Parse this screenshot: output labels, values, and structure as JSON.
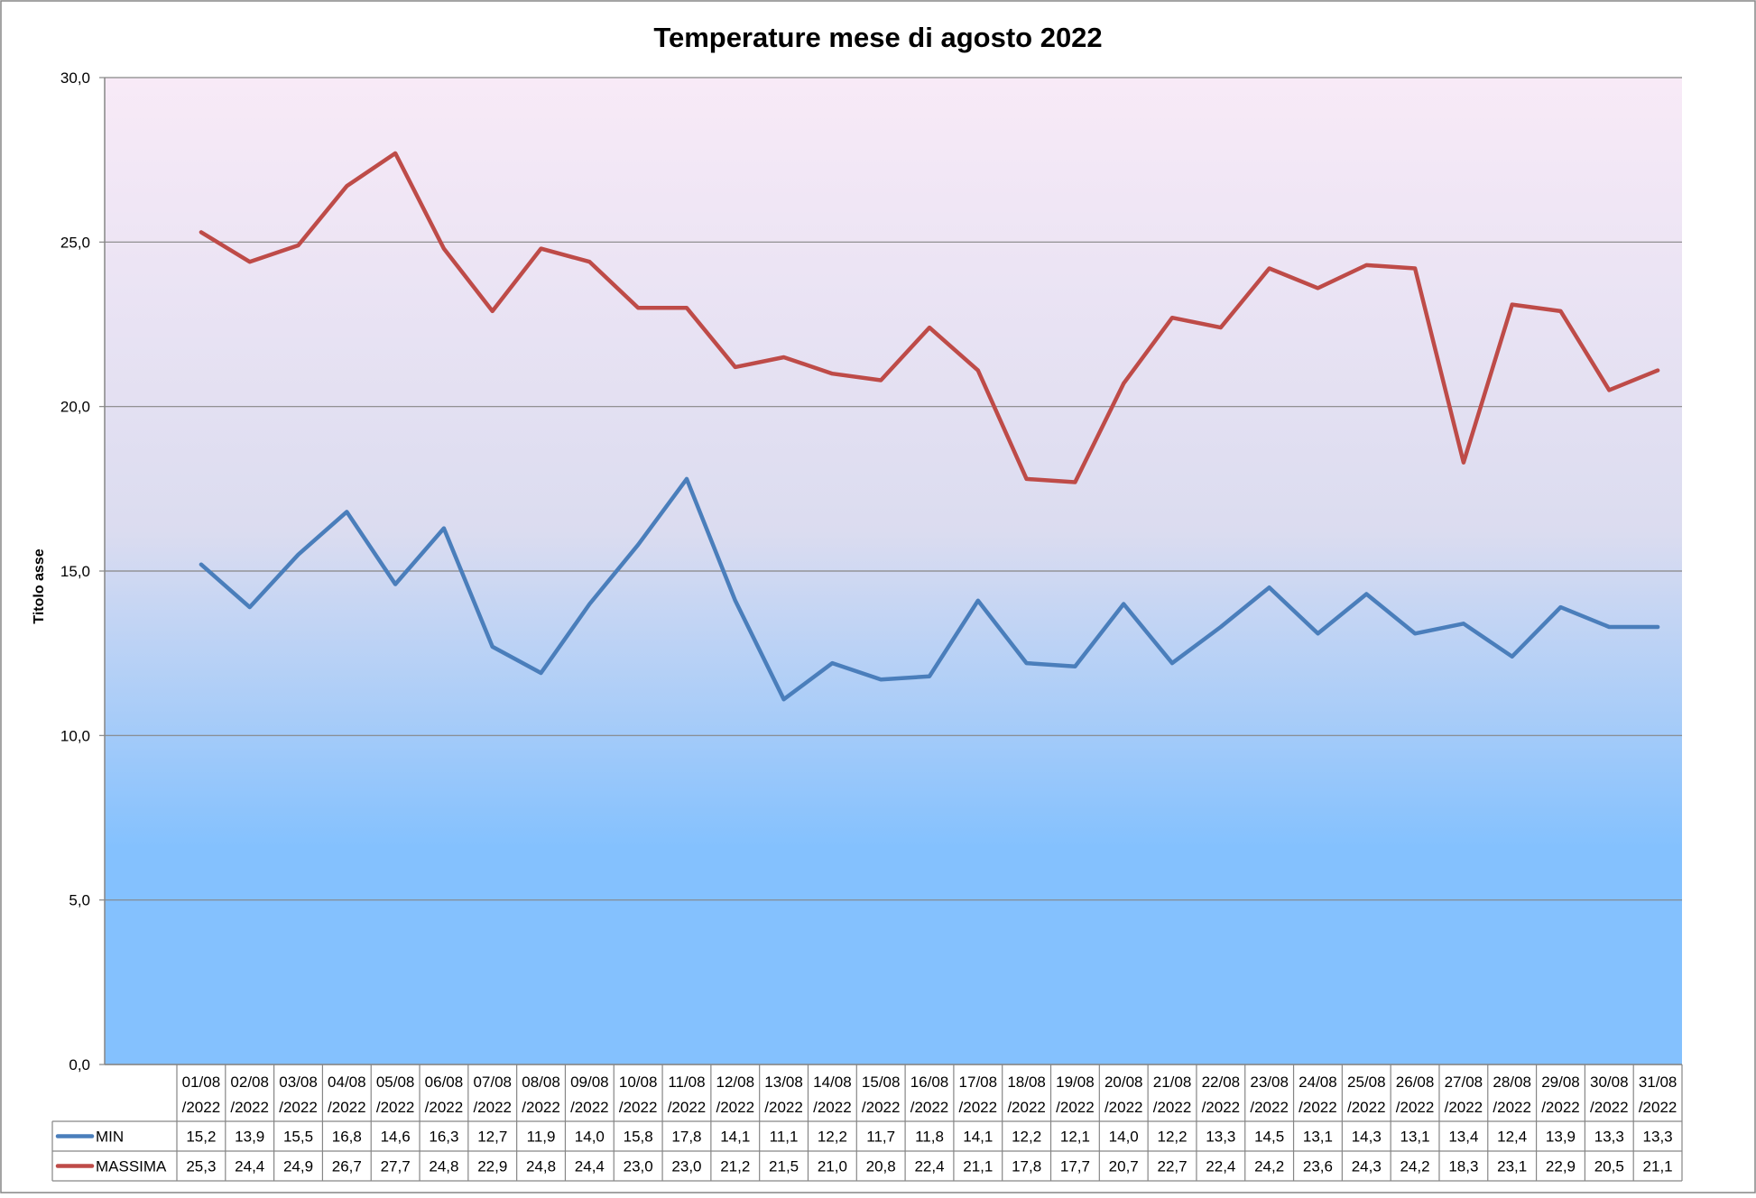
{
  "chart_data": {
    "type": "line",
    "title": "Temperature mese di agosto 2022",
    "ylabel": "Titolo asse",
    "xlabel": "",
    "ylim": [
      0,
      30
    ],
    "yticks": [
      "0,0",
      "5,0",
      "10,0",
      "15,0",
      "20,0",
      "25,0",
      "30,0"
    ],
    "grid": true,
    "legend_placement": "data-table",
    "categories": [
      [
        "01/08",
        "/2022"
      ],
      [
        "02/08",
        "/2022"
      ],
      [
        "03/08",
        "/2022"
      ],
      [
        "04/08",
        "/2022"
      ],
      [
        "05/08",
        "/2022"
      ],
      [
        "06/08",
        "/2022"
      ],
      [
        "07/08",
        "/2022"
      ],
      [
        "08/08",
        "/2022"
      ],
      [
        "09/08",
        "/2022"
      ],
      [
        "10/08",
        "/2022"
      ],
      [
        "11/08",
        "/2022"
      ],
      [
        "12/08",
        "/2022"
      ],
      [
        "13/08",
        "/2022"
      ],
      [
        "14/08",
        "/2022"
      ],
      [
        "15/08",
        "/2022"
      ],
      [
        "16/08",
        "/2022"
      ],
      [
        "17/08",
        "/2022"
      ],
      [
        "18/08",
        "/2022"
      ],
      [
        "19/08",
        "/2022"
      ],
      [
        "20/08",
        "/2022"
      ],
      [
        "21/08",
        "/2022"
      ],
      [
        "22/08",
        "/2022"
      ],
      [
        "23/08",
        "/2022"
      ],
      [
        "24/08",
        "/2022"
      ],
      [
        "25/08",
        "/2022"
      ],
      [
        "26/08",
        "/2022"
      ],
      [
        "27/08",
        "/2022"
      ],
      [
        "28/08",
        "/2022"
      ],
      [
        "29/08",
        "/2022"
      ],
      [
        "30/08",
        "/2022"
      ],
      [
        "31/08",
        "/2022"
      ]
    ],
    "series": [
      {
        "name": "MIN",
        "color": "#4a7ebb",
        "values": [
          15.2,
          13.9,
          15.5,
          16.8,
          14.6,
          16.3,
          12.7,
          11.9,
          14.0,
          15.8,
          17.8,
          14.1,
          11.1,
          12.2,
          11.7,
          11.8,
          14.1,
          12.2,
          12.1,
          14.0,
          12.2,
          13.3,
          14.5,
          13.1,
          14.3,
          13.1,
          13.4,
          12.4,
          13.9,
          13.3,
          13.3
        ],
        "labels": [
          "15,2",
          "13,9",
          "15,5",
          "16,8",
          "14,6",
          "16,3",
          "12,7",
          "11,9",
          "14,0",
          "15,8",
          "17,8",
          "14,1",
          "11,1",
          "12,2",
          "11,7",
          "11,8",
          "14,1",
          "12,2",
          "12,1",
          "14,0",
          "12,2",
          "13,3",
          "14,5",
          "13,1",
          "14,3",
          "13,1",
          "13,4",
          "12,4",
          "13,9",
          "13,3",
          "13,3"
        ]
      },
      {
        "name": "MASSIMA",
        "color": "#be4b48",
        "values": [
          25.3,
          24.4,
          24.9,
          26.7,
          27.7,
          24.8,
          22.9,
          24.8,
          24.4,
          23.0,
          23.0,
          21.2,
          21.5,
          21.0,
          20.8,
          22.4,
          21.1,
          17.8,
          17.7,
          20.7,
          22.7,
          22.4,
          24.2,
          23.6,
          24.3,
          24.2,
          18.3,
          23.1,
          22.9,
          20.5,
          21.1
        ],
        "labels": [
          "25,3",
          "24,4",
          "24,9",
          "26,7",
          "27,7",
          "24,8",
          "22,9",
          "24,8",
          "24,4",
          "23,0",
          "23,0",
          "21,2",
          "21,5",
          "21,0",
          "20,8",
          "22,4",
          "21,1",
          "17,8",
          "17,7",
          "20,7",
          "22,7",
          "22,4",
          "24,2",
          "23,6",
          "24,3",
          "24,2",
          "18,3",
          "23,1",
          "22,9",
          "20,5",
          "21,1"
        ]
      }
    ],
    "note_values_shown_in_table": true,
    "plot_colors": {
      "top": "#f8eaf7",
      "bottom": "#84c1fe",
      "grid": "#868686",
      "axis": "#868686"
    }
  }
}
